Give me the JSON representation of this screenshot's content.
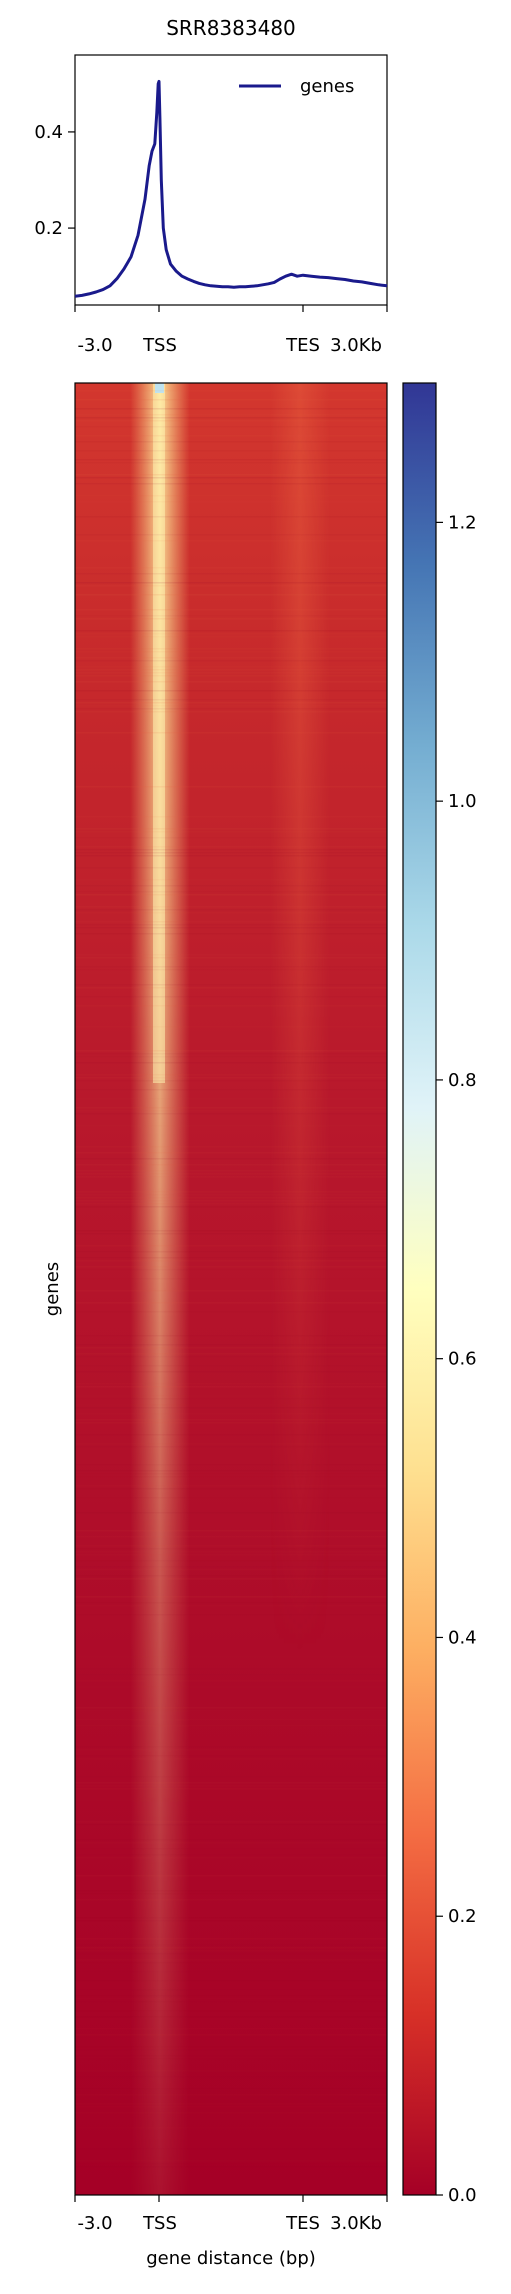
{
  "chart_data": [
    {
      "type": "line",
      "title": "SRR8383480",
      "xlabel": "",
      "ylabel": "",
      "xticks": [
        "-3.0",
        "TSS",
        "TES",
        "3.0Kb"
      ],
      "yticks": [
        0.2,
        0.4
      ],
      "ylim": [
        0.04,
        0.56
      ],
      "legend": {
        "position": "top-right",
        "entries": [
          "genes"
        ]
      },
      "series": [
        {
          "name": "genes",
          "color": "#1a1a8c",
          "x": [
            -3.0,
            -2.75,
            -2.5,
            -2.25,
            -2.0,
            -1.75,
            -1.5,
            -1.25,
            -1.0,
            -0.75,
            -0.5,
            -0.35,
            -0.25,
            -0.15,
            -0.08,
            -0.03,
            0.0,
            0.03,
            0.08,
            0.15,
            0.25,
            0.4,
            0.6,
            0.8,
            1.0,
            1.2,
            1.4,
            1.6,
            1.8,
            2.0,
            2.2,
            2.4,
            2.6,
            2.8,
            3.0,
            3.2,
            3.4,
            3.6,
            3.8,
            4.0,
            4.2,
            4.4,
            4.6,
            4.8,
            5.0,
            5.3,
            5.6,
            5.9,
            6.2,
            6.5,
            6.8,
            7.1,
            7.4,
            7.7,
            8.0
          ],
          "values": [
            0.058,
            0.06,
            0.063,
            0.067,
            0.072,
            0.08,
            0.095,
            0.115,
            0.14,
            0.185,
            0.26,
            0.33,
            0.36,
            0.375,
            0.44,
            0.5,
            0.505,
            0.43,
            0.3,
            0.2,
            0.155,
            0.125,
            0.11,
            0.1,
            0.094,
            0.089,
            0.085,
            0.082,
            0.08,
            0.079,
            0.078,
            0.078,
            0.077,
            0.078,
            0.078,
            0.079,
            0.08,
            0.082,
            0.084,
            0.087,
            0.094,
            0.1,
            0.104,
            0.1,
            0.102,
            0.1,
            0.098,
            0.097,
            0.095,
            0.093,
            0.09,
            0.088,
            0.085,
            0.082,
            0.08
          ]
        }
      ]
    },
    {
      "type": "heatmap",
      "xlabel": "gene distance (bp)",
      "ylabel": "genes",
      "xticks": [
        "-3.0",
        "TSS",
        "TES",
        "3.0Kb"
      ],
      "colorbar": {
        "ticks": [
          0.0,
          0.2,
          0.4,
          0.6,
          0.8,
          1.0,
          1.2
        ],
        "range": [
          0.0,
          1.3
        ],
        "colormap": "RdYlBu",
        "colors": [
          "#a50026",
          "#d73027",
          "#f46d43",
          "#fdae61",
          "#fee090",
          "#ffffbf",
          "#e0f3f8",
          "#abd9e9",
          "#74add1",
          "#4575b4",
          "#313695"
        ]
      }
    }
  ]
}
